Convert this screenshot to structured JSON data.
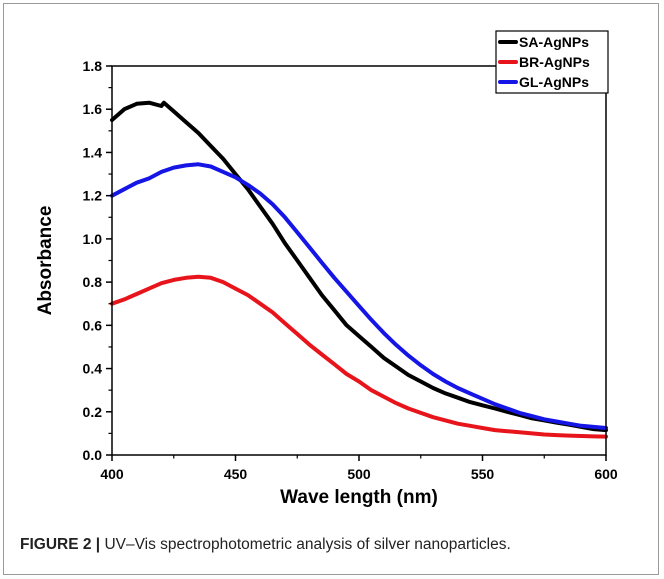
{
  "figure": {
    "caption_label": "FIGURE 2 |",
    "caption_text": " UV–Vis spectrophotometric analysis of silver nanoparticles."
  },
  "chart_data": {
    "type": "line",
    "xlabel": "Wave length (nm)",
    "ylabel": "Absorbance",
    "xlim": [
      400,
      600
    ],
    "ylim": [
      0.0,
      1.8
    ],
    "xticks": [
      "400",
      "450",
      "500",
      "550",
      "600"
    ],
    "yticks": [
      "0.0",
      "0.2",
      "0.4",
      "0.6",
      "0.8",
      "1.0",
      "1.2",
      "1.4",
      "1.6",
      "1.8"
    ],
    "grid": false,
    "legend_position": "top-right",
    "series": [
      {
        "name": "SA-AgNPs",
        "color": "#000000",
        "x": [
          400,
          405,
          410,
          415,
          420,
          421,
          425,
          430,
          435,
          440,
          445,
          450,
          455,
          460,
          465,
          470,
          475,
          480,
          485,
          490,
          495,
          500,
          505,
          510,
          515,
          520,
          525,
          530,
          535,
          540,
          545,
          550,
          555,
          560,
          565,
          570,
          575,
          580,
          585,
          590,
          595,
          600
        ],
        "y": [
          1.55,
          1.6,
          1.625,
          1.63,
          1.615,
          1.63,
          1.59,
          1.54,
          1.49,
          1.43,
          1.37,
          1.3,
          1.23,
          1.15,
          1.07,
          0.98,
          0.9,
          0.82,
          0.74,
          0.67,
          0.6,
          0.55,
          0.5,
          0.45,
          0.41,
          0.37,
          0.34,
          0.31,
          0.285,
          0.265,
          0.245,
          0.23,
          0.215,
          0.2,
          0.185,
          0.17,
          0.16,
          0.15,
          0.14,
          0.13,
          0.12,
          0.115
        ]
      },
      {
        "name": "BR-AgNPs",
        "color": "#e8141b",
        "x": [
          400,
          405,
          410,
          415,
          420,
          425,
          430,
          435,
          440,
          445,
          450,
          455,
          460,
          465,
          470,
          475,
          480,
          485,
          490,
          495,
          500,
          505,
          510,
          515,
          520,
          525,
          530,
          535,
          540,
          545,
          550,
          555,
          560,
          565,
          570,
          575,
          580,
          585,
          590,
          595,
          600
        ],
        "y": [
          0.7,
          0.72,
          0.745,
          0.77,
          0.795,
          0.81,
          0.82,
          0.825,
          0.82,
          0.8,
          0.77,
          0.74,
          0.7,
          0.66,
          0.61,
          0.56,
          0.51,
          0.465,
          0.42,
          0.375,
          0.34,
          0.3,
          0.27,
          0.24,
          0.215,
          0.195,
          0.175,
          0.16,
          0.145,
          0.135,
          0.125,
          0.115,
          0.11,
          0.105,
          0.1,
          0.095,
          0.092,
          0.09,
          0.088,
          0.086,
          0.085
        ]
      },
      {
        "name": "GL-AgNPs",
        "color": "#1515e6",
        "x": [
          400,
          405,
          410,
          415,
          420,
          425,
          430,
          435,
          440,
          445,
          450,
          455,
          460,
          465,
          470,
          475,
          480,
          485,
          490,
          495,
          500,
          505,
          510,
          515,
          520,
          525,
          530,
          535,
          540,
          545,
          550,
          555,
          560,
          565,
          570,
          575,
          580,
          585,
          590,
          595,
          600
        ],
        "y": [
          1.2,
          1.23,
          1.26,
          1.28,
          1.31,
          1.33,
          1.34,
          1.345,
          1.335,
          1.31,
          1.285,
          1.25,
          1.21,
          1.16,
          1.1,
          1.03,
          0.96,
          0.89,
          0.82,
          0.755,
          0.69,
          0.625,
          0.565,
          0.51,
          0.46,
          0.415,
          0.375,
          0.34,
          0.31,
          0.285,
          0.26,
          0.235,
          0.215,
          0.195,
          0.18,
          0.165,
          0.155,
          0.145,
          0.135,
          0.13,
          0.125
        ]
      }
    ]
  }
}
